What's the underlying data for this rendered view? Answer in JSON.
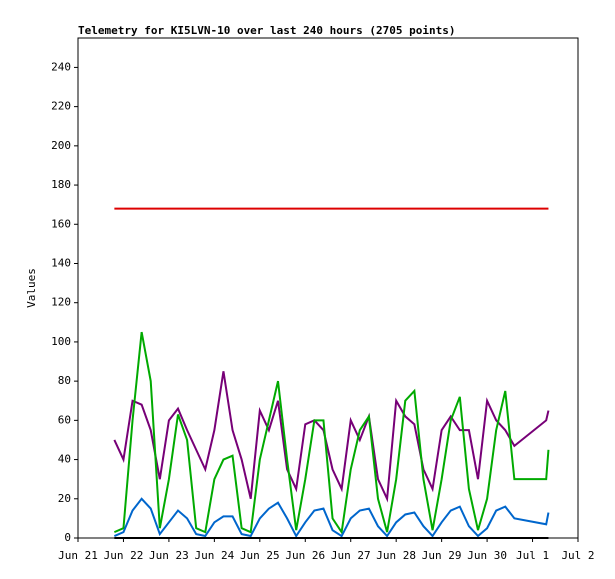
{
  "chart_data": {
    "type": "line",
    "title": "Telemetry for KI5LVN-10 over last 240 hours (2705 points)",
    "y_label": "Values",
    "x": [
      21.8,
      22.0,
      22.2,
      22.4,
      22.6,
      22.8,
      23.0,
      23.2,
      23.4,
      23.6,
      23.8,
      24.0,
      24.2,
      24.4,
      24.6,
      24.8,
      25.0,
      25.2,
      25.4,
      25.6,
      25.8,
      26.0,
      26.2,
      26.4,
      26.6,
      26.8,
      27.0,
      27.2,
      27.4,
      27.6,
      27.8,
      28.0,
      28.2,
      28.4,
      28.6,
      28.8,
      29.0,
      29.2,
      29.4,
      29.6,
      29.8,
      30.0,
      30.2,
      30.4,
      30.6,
      31.3,
      31.35
    ],
    "series": [
      {
        "color": "#dd0000",
        "values": [
          168,
          168,
          168,
          168,
          168,
          168,
          168,
          168,
          168,
          168,
          168,
          168,
          168,
          168,
          168,
          168,
          168,
          168,
          168,
          168,
          168,
          168,
          168,
          168,
          168,
          168,
          168,
          168,
          168,
          168,
          168,
          168,
          168,
          168,
          168,
          168,
          168,
          168,
          168,
          168,
          168,
          168,
          168,
          168,
          168,
          168,
          168
        ]
      },
      {
        "color": "#770077",
        "values": [
          50,
          40,
          70,
          68,
          55,
          30,
          60,
          66,
          55,
          45,
          35,
          55,
          85,
          55,
          40,
          20,
          65,
          55,
          70,
          35,
          25,
          58,
          60,
          55,
          35,
          25,
          60,
          50,
          62,
          30,
          20,
          70,
          62,
          58,
          35,
          25,
          55,
          62,
          55,
          55,
          30,
          70,
          60,
          55,
          47,
          60,
          65
        ]
      },
      {
        "color": "#00aa00",
        "values": [
          3,
          5,
          60,
          105,
          80,
          5,
          30,
          63,
          50,
          5,
          3,
          30,
          40,
          42,
          5,
          3,
          40,
          60,
          80,
          40,
          4,
          30,
          60,
          60,
          10,
          3,
          35,
          55,
          62,
          20,
          3,
          30,
          70,
          75,
          30,
          4,
          30,
          60,
          72,
          25,
          4,
          20,
          55,
          75,
          30,
          30,
          45
        ]
      },
      {
        "color": "#0066cc",
        "values": [
          1,
          3,
          14,
          20,
          15,
          2,
          8,
          14,
          10,
          2,
          1,
          8,
          11,
          11,
          2,
          1,
          10,
          15,
          18,
          10,
          1,
          8,
          14,
          15,
          4,
          1,
          10,
          14,
          15,
          6,
          1,
          8,
          12,
          13,
          6,
          1,
          8,
          14,
          16,
          6,
          1,
          5,
          14,
          16,
          10,
          7,
          13
        ]
      },
      {
        "color": "#000000",
        "values": [
          0,
          0,
          0,
          0,
          0,
          0,
          0,
          0,
          0,
          0,
          0,
          0,
          0,
          0,
          0,
          0,
          0,
          0,
          0,
          0,
          0,
          0,
          0,
          0,
          0,
          0,
          0,
          0,
          0,
          0,
          0,
          0,
          0,
          0,
          0,
          0,
          0,
          0,
          0,
          0,
          0,
          0,
          0,
          0,
          0,
          0,
          0
        ]
      }
    ],
    "xlim": [
      21,
      32
    ],
    "xticks": [
      {
        "value": 21,
        "label": "Jun 21"
      },
      {
        "value": 22,
        "label": "Jun 22"
      },
      {
        "value": 23,
        "label": "Jun 23"
      },
      {
        "value": 24,
        "label": "Jun 24"
      },
      {
        "value": 25,
        "label": "Jun 25"
      },
      {
        "value": 26,
        "label": "Jun 26"
      },
      {
        "value": 27,
        "label": "Jun 27"
      },
      {
        "value": 28,
        "label": "Jun 28"
      },
      {
        "value": 29,
        "label": "Jun 29"
      },
      {
        "value": 30,
        "label": "Jun 30"
      },
      {
        "value": 31,
        "label": "Jul 1"
      },
      {
        "value": 32,
        "label": "Jul 2"
      }
    ],
    "ylim": [
      0,
      255
    ],
    "yticks": [
      0,
      20,
      40,
      60,
      80,
      100,
      120,
      140,
      160,
      180,
      200,
      220,
      240
    ],
    "grid": false
  }
}
